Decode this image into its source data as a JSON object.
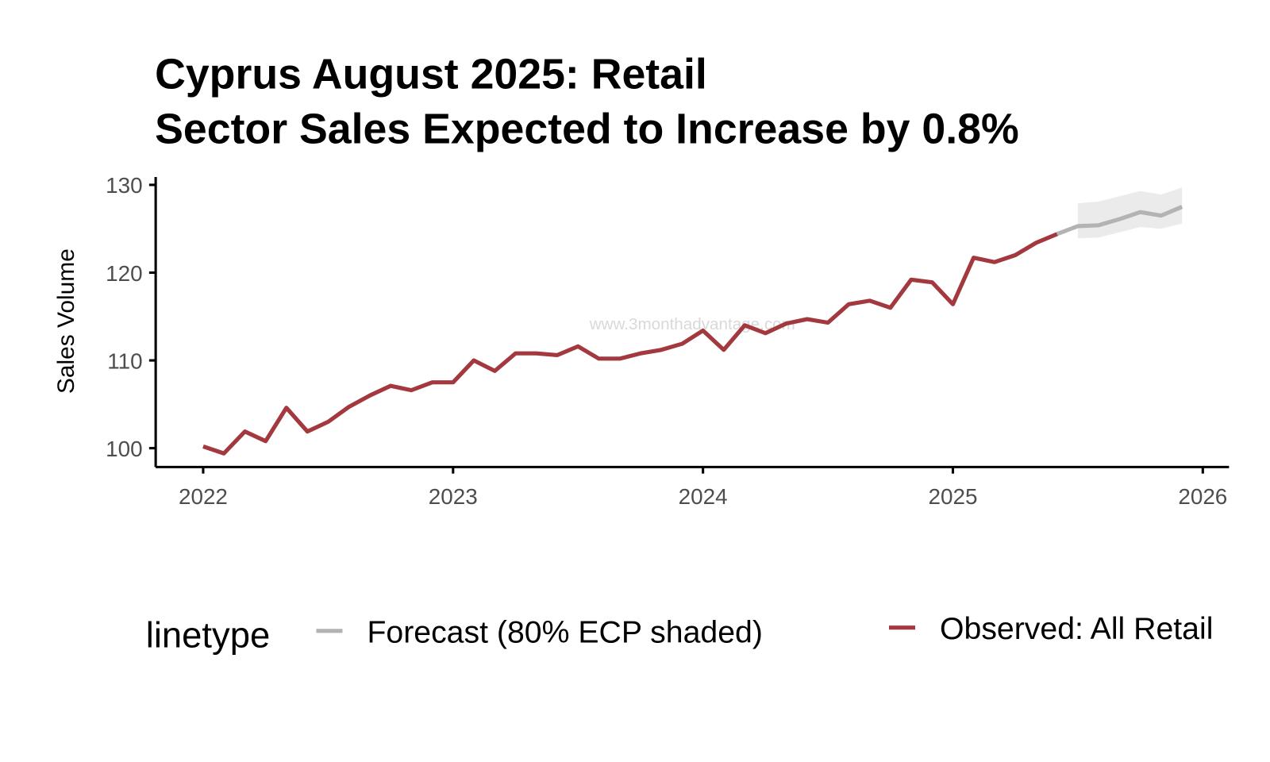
{
  "chart_data": {
    "type": "line",
    "title": [
      "Cyprus August 2025: Retail",
      "Sector Sales Expected to Increase by 0.8%"
    ],
    "y_label": "Sales Volume",
    "watermark": "www.3monthadvantage.com",
    "legend_title": "linetype",
    "xlim": [
      2021.81,
      2026.105
    ],
    "xticks": [
      2022,
      2023,
      2024,
      2025,
      2026
    ],
    "ylim": [
      97.85,
      130.9
    ],
    "yticks": [
      100,
      110,
      120,
      130
    ],
    "grid": false,
    "series": [
      {
        "name": "Forecast (80% ECP shaded)",
        "color": "#b3b3b3",
        "band_color": "#ebebeb",
        "x": [
          2025.417,
          2025.5,
          2025.583,
          2025.667,
          2025.75,
          2025.833,
          2025.917
        ],
        "values": [
          124.4,
          125.3,
          125.4,
          126.1,
          126.9,
          126.5,
          127.5
        ],
        "lower": [
          null,
          123.9,
          124.0,
          124.6,
          125.2,
          125.0,
          125.6
        ],
        "upper": [
          null,
          127.9,
          128.1,
          128.7,
          129.3,
          128.9,
          129.7
        ]
      },
      {
        "name": "Observed: All Retail",
        "color": "#a3393e",
        "x": [
          2022,
          2022.083,
          2022.167,
          2022.25,
          2022.333,
          2022.417,
          2022.5,
          2022.583,
          2022.667,
          2022.75,
          2022.833,
          2022.917,
          2023,
          2023.083,
          2023.167,
          2023.25,
          2023.333,
          2023.417,
          2023.5,
          2023.583,
          2023.667,
          2023.75,
          2023.833,
          2023.917,
          2024,
          2024.083,
          2024.167,
          2024.25,
          2024.333,
          2024.417,
          2024.5,
          2024.583,
          2024.667,
          2024.75,
          2024.833,
          2024.917,
          2025,
          2025.083,
          2025.167,
          2025.25,
          2025.333,
          2025.417
        ],
        "values": [
          100.2,
          99.4,
          101.9,
          100.8,
          104.6,
          101.9,
          103.0,
          104.7,
          106.0,
          107.1,
          106.6,
          107.5,
          107.5,
          110.0,
          108.8,
          110.8,
          110.8,
          110.6,
          111.6,
          110.2,
          110.2,
          110.8,
          111.2,
          111.9,
          113.4,
          111.2,
          114.0,
          113.1,
          114.2,
          114.7,
          114.3,
          116.4,
          116.8,
          116.0,
          119.2,
          118.9,
          116.4,
          121.7,
          121.2,
          122.0,
          123.4,
          124.4
        ]
      }
    ]
  }
}
